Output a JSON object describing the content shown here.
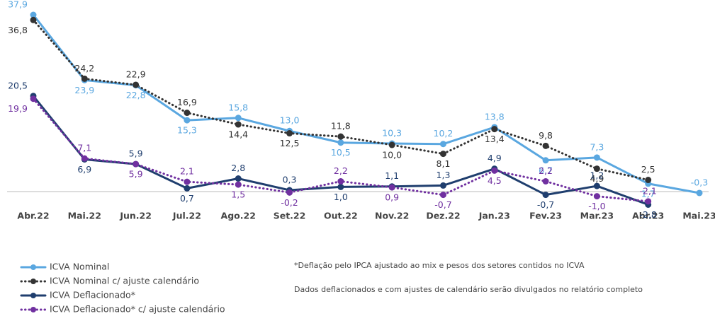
{
  "chart_data": {
    "type": "line",
    "categories": [
      "Abr.22",
      "Mai.22",
      "Jun.22",
      "Jul.22",
      "Ago.22",
      "Set.22",
      "Out.22",
      "Nov.22",
      "Dez.22",
      "Jan.23",
      "Fev.23",
      "Mar.23",
      "Abr.23",
      "Mai.23"
    ],
    "series": [
      {
        "name": "ICVA Nominal",
        "color": "#5aa7e0",
        "dash": false,
        "values": [
          37.9,
          23.9,
          22.8,
          15.3,
          15.8,
          13.0,
          10.5,
          10.3,
          10.2,
          13.8,
          6.7,
          7.3,
          1.7,
          -0.3
        ],
        "value_labels": [
          "37,9",
          "23,9",
          "22,8",
          "15,3",
          "15,8",
          "13,0",
          "10,5",
          "10,3",
          "10,2",
          "13,8",
          "6,7",
          "7,3",
          "1,7",
          "-0,3"
        ]
      },
      {
        "name": "ICVA Nominal c/ ajuste calendário",
        "color": "#333333",
        "dash": true,
        "values": [
          36.8,
          24.2,
          22.9,
          16.9,
          14.4,
          12.5,
          11.8,
          10.0,
          8.1,
          13.4,
          9.8,
          4.9,
          2.5,
          null
        ],
        "value_labels": [
          "36,8",
          "24,2",
          "22,9",
          "16,9",
          "14,4",
          "12,5",
          "11,8",
          "10,0",
          "8,1",
          "13,4",
          "9,8",
          "4,9",
          "2,5",
          null
        ]
      },
      {
        "name": "ICVA Deflacionado*",
        "color": "#1f3e6e",
        "dash": false,
        "values": [
          20.5,
          6.9,
          5.9,
          0.7,
          2.8,
          0.3,
          1.0,
          1.1,
          1.3,
          4.9,
          -0.7,
          1.2,
          -2.8,
          null
        ],
        "value_labels": [
          "20,5",
          "6,9",
          "5,9",
          "0,7",
          "2,8",
          "0,3",
          "1,0",
          "1,1",
          "1,3",
          "4,9",
          "-0,7",
          "1,2",
          "-2,8",
          null
        ]
      },
      {
        "name": "ICVA Deflacionado* c/ ajuste calendário",
        "color": "#7030a0",
        "dash": true,
        "values": [
          19.9,
          7.1,
          5.9,
          2.1,
          1.5,
          -0.2,
          2.2,
          0.9,
          -0.7,
          4.5,
          2.2,
          -1.0,
          -2.1,
          null
        ],
        "value_labels": [
          "19,9",
          "7,1",
          "5,9",
          "2,1",
          "1,5",
          "-0,2",
          "2,2",
          "0,9",
          "-0,7",
          "4,5",
          "2,2",
          "-1,0",
          "-2,1",
          null
        ]
      }
    ],
    "notes": [
      "*Deflação pelo IPCA ajustado ao mix e pesos dos setores contidos no ICVA",
      "Dados deflacionados e com ajustes de calendário serão divulgados no relatório completo"
    ]
  }
}
